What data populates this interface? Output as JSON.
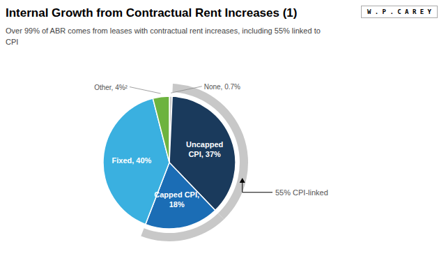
{
  "chart_data": {
    "type": "pie",
    "title": "Internal Growth from Contractual Rent Increases (1)",
    "subtitle": "Over 99% of ABR comes from leases with contractual rent increases, including 55% linked to\nCPI",
    "categories": [
      "None",
      "Uncapped CPI",
      "Capped CPI",
      "Fixed",
      "Other"
    ],
    "values": [
      0.7,
      37.0,
      18.0,
      40.0,
      4.0
    ],
    "value_labels": [
      "None, 0.7%",
      "Uncapped\nCPI, 37%",
      "Capped CPI,\n18%",
      "Fixed, 40%",
      "Other, 4%²"
    ],
    "colors": [
      "#c8c8c8",
      "#1a3a5c",
      "#1b6db5",
      "#3ab0e0",
      "#6db33f"
    ],
    "annotations": [
      {
        "text": "55% CPI-linked",
        "categories": [
          "Uncapped CPI",
          "Capped CPI"
        ],
        "color": "#c8c8c8"
      },
      {
        "text": "W . P . C A R E Y"
      }
    ]
  }
}
